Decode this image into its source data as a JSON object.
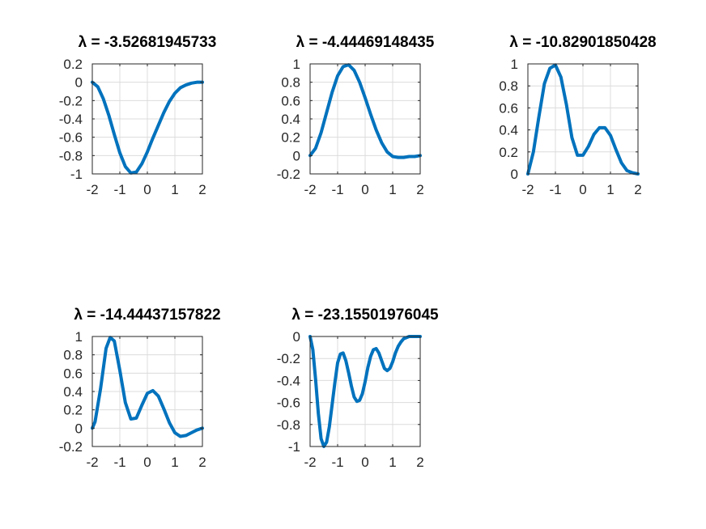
{
  "chart_data": [
    {
      "type": "line",
      "title": "λ = -3.52681945733",
      "xlim": [
        -2,
        2
      ],
      "ylim": [
        -1,
        0.2
      ],
      "xticks": [
        -2,
        -1,
        0,
        1,
        2
      ],
      "yticks": [
        -1,
        -0.8,
        -0.6,
        -0.4,
        -0.2,
        0,
        0.2
      ],
      "grid": true,
      "series": [
        {
          "color": "#0072bd",
          "x": [
            -2,
            -1.8,
            -1.6,
            -1.4,
            -1.2,
            -1.0,
            -0.8,
            -0.6,
            -0.4,
            -0.2,
            0,
            0.2,
            0.4,
            0.6,
            0.8,
            1.0,
            1.2,
            1.4,
            1.6,
            1.8,
            2.0
          ],
          "y": [
            0,
            -0.05,
            -0.18,
            -0.36,
            -0.57,
            -0.77,
            -0.92,
            -0.99,
            -0.98,
            -0.89,
            -0.76,
            -0.61,
            -0.47,
            -0.33,
            -0.21,
            -0.12,
            -0.06,
            -0.03,
            -0.01,
            0,
            0
          ]
        }
      ]
    },
    {
      "type": "line",
      "title": "λ = -4.44469148435",
      "xlim": [
        -2,
        2
      ],
      "ylim": [
        -0.2,
        1
      ],
      "xticks": [
        -2,
        -1,
        0,
        1,
        2
      ],
      "yticks": [
        -0.2,
        0,
        0.2,
        0.4,
        0.6,
        0.8,
        1
      ],
      "grid": true,
      "series": [
        {
          "color": "#0072bd",
          "x": [
            -2,
            -1.8,
            -1.6,
            -1.4,
            -1.2,
            -1.0,
            -0.8,
            -0.6,
            -0.4,
            -0.2,
            0,
            0.2,
            0.4,
            0.6,
            0.8,
            1.0,
            1.2,
            1.4,
            1.6,
            1.8,
            2.0
          ],
          "y": [
            0,
            0.08,
            0.25,
            0.47,
            0.69,
            0.87,
            0.97,
            0.99,
            0.93,
            0.8,
            0.63,
            0.45,
            0.28,
            0.14,
            0.04,
            -0.01,
            -0.02,
            -0.02,
            -0.01,
            -0.01,
            0
          ]
        }
      ]
    },
    {
      "type": "line",
      "title": "λ = -10.82901850428",
      "xlim": [
        -2,
        2
      ],
      "ylim": [
        0,
        1
      ],
      "xticks": [
        -2,
        -1,
        0,
        1,
        2
      ],
      "yticks": [
        0,
        0.2,
        0.4,
        0.6,
        0.8,
        1
      ],
      "grid": true,
      "series": [
        {
          "color": "#0072bd",
          "x": [
            -2,
            -1.8,
            -1.6,
            -1.4,
            -1.2,
            -1.0,
            -0.8,
            -0.6,
            -0.4,
            -0.2,
            0,
            0.2,
            0.4,
            0.6,
            0.8,
            1.0,
            1.2,
            1.4,
            1.6,
            1.8,
            2.0
          ],
          "y": [
            0,
            0.2,
            0.52,
            0.82,
            0.96,
            0.99,
            0.88,
            0.63,
            0.33,
            0.17,
            0.17,
            0.25,
            0.36,
            0.42,
            0.42,
            0.35,
            0.22,
            0.1,
            0.03,
            0.01,
            0
          ]
        }
      ]
    },
    {
      "type": "line",
      "title": "λ = -14.44437157822",
      "xlim": [
        -2,
        2
      ],
      "ylim": [
        -0.2,
        1
      ],
      "xticks": [
        -2,
        -1,
        0,
        1,
        2
      ],
      "yticks": [
        -0.2,
        0,
        0.2,
        0.4,
        0.6,
        0.8,
        1
      ],
      "grid": true,
      "series": [
        {
          "color": "#0072bd",
          "x": [
            -2,
            -1.9,
            -1.7,
            -1.5,
            -1.35,
            -1.2,
            -1.0,
            -0.8,
            -0.6,
            -0.4,
            -0.2,
            0,
            0.2,
            0.4,
            0.6,
            0.8,
            1.0,
            1.2,
            1.4,
            1.6,
            1.8,
            2.0
          ],
          "y": [
            0,
            0.07,
            0.43,
            0.87,
            0.99,
            0.95,
            0.63,
            0.28,
            0.1,
            0.11,
            0.25,
            0.38,
            0.41,
            0.35,
            0.21,
            0.06,
            -0.05,
            -0.09,
            -0.08,
            -0.05,
            -0.02,
            0
          ]
        }
      ]
    },
    {
      "type": "line",
      "title": "λ = -23.15501976045",
      "xlim": [
        -2,
        2
      ],
      "ylim": [
        -1,
        0
      ],
      "xticks": [
        -2,
        -1,
        0,
        1,
        2
      ],
      "yticks": [
        -1,
        -0.8,
        -0.6,
        -0.4,
        -0.2,
        0
      ],
      "grid": true,
      "series": [
        {
          "color": "#0072bd",
          "x": [
            -2,
            -1.9,
            -1.8,
            -1.7,
            -1.6,
            -1.5,
            -1.4,
            -1.3,
            -1.2,
            -1.1,
            -1.0,
            -0.9,
            -0.8,
            -0.7,
            -0.6,
            -0.5,
            -0.4,
            -0.3,
            -0.2,
            -0.1,
            0,
            0.1,
            0.2,
            0.3,
            0.4,
            0.5,
            0.6,
            0.7,
            0.8,
            0.9,
            1.0,
            1.1,
            1.2,
            1.3,
            1.4,
            1.5,
            1.6,
            1.7,
            1.8,
            1.9,
            2.0
          ],
          "y": [
            0,
            -0.12,
            -0.39,
            -0.7,
            -0.93,
            -1.0,
            -0.96,
            -0.82,
            -0.62,
            -0.42,
            -0.24,
            -0.16,
            -0.15,
            -0.22,
            -0.33,
            -0.45,
            -0.55,
            -0.59,
            -0.58,
            -0.52,
            -0.41,
            -0.28,
            -0.18,
            -0.12,
            -0.11,
            -0.15,
            -0.22,
            -0.29,
            -0.31,
            -0.29,
            -0.23,
            -0.15,
            -0.09,
            -0.05,
            -0.02,
            -0.01,
            0,
            0,
            0,
            0,
            0
          ]
        }
      ]
    }
  ]
}
